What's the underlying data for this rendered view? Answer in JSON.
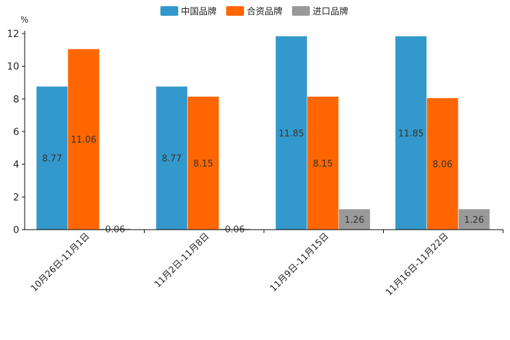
{
  "chart_data": {
    "type": "bar",
    "title": "",
    "ylabel": "%",
    "xlabel": "",
    "ylim": [
      0,
      12
    ],
    "yticks": [
      0,
      2,
      4,
      6,
      8,
      10,
      12
    ],
    "categories": [
      "10月26日-11月1日",
      "11月2日-11月8日",
      "11月9日-11月15日",
      "11月16日-11月22日"
    ],
    "series": [
      {
        "name": "中国品牌",
        "color": "#3399cc",
        "values": [
          8.77,
          8.77,
          11.85,
          11.85
        ],
        "labels": [
          "8.77",
          "8.77",
          "11.85",
          "11.85"
        ]
      },
      {
        "name": "合资品牌",
        "color": "#ff6600",
        "values": [
          11.06,
          8.15,
          8.15,
          8.06
        ],
        "labels": [
          "11.06",
          "8.15",
          "8.15",
          "8.06"
        ]
      },
      {
        "name": "进口品牌",
        "color": "#999999",
        "values": [
          0.06,
          0.06,
          1.26,
          1.26
        ],
        "labels": [
          "0.06",
          "0.06",
          "1.26",
          "1.26"
        ]
      }
    ],
    "legend_position": "top-center",
    "grid": false
  }
}
